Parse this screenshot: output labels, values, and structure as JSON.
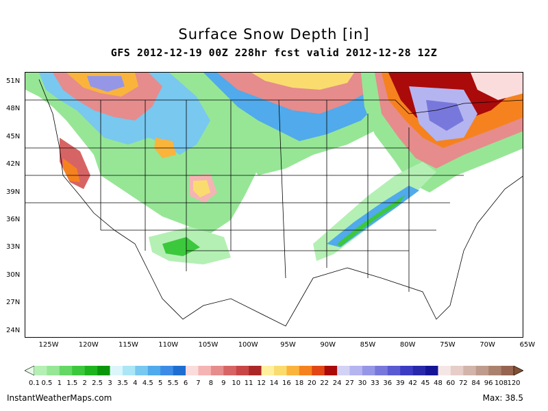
{
  "title": "Surface Snow Depth [in]",
  "subtitle": "GFS 2012-12-19 00Z 228hr fcst valid 2012-12-28 12Z",
  "lat_labels": [
    "51N",
    "48N",
    "45N",
    "42N",
    "39N",
    "36N",
    "33N",
    "30N",
    "27N",
    "24N"
  ],
  "lon_labels": [
    "125W",
    "120W",
    "115W",
    "110W",
    "105W",
    "100W",
    "95W",
    "90W",
    "85W",
    "80W",
    "75W",
    "70W",
    "65W"
  ],
  "legend": {
    "ticks": [
      "0.1",
      "0.5",
      "1",
      "1.5",
      "2",
      "2.5",
      "3",
      "3.5",
      "4",
      "4.5",
      "5",
      "5.5",
      "6",
      "7",
      "8",
      "9",
      "10",
      "11",
      "12",
      "14",
      "16",
      "18",
      "20",
      "22",
      "24",
      "27",
      "30",
      "33",
      "36",
      "39",
      "42",
      "45",
      "48",
      "60",
      "72",
      "84",
      "96",
      "108",
      "120"
    ],
    "colors": [
      "#e6fae6",
      "#b4f0b4",
      "#96e696",
      "#64d764",
      "#3cc83c",
      "#1eb41e",
      "#0a960a",
      "#dcf5fa",
      "#aae6f5",
      "#78c8f0",
      "#50aaeb",
      "#3c8ce6",
      "#1e6ed2",
      "#fadcdc",
      "#f5b4b4",
      "#e68c8c",
      "#d76464",
      "#c84646",
      "#aa2828",
      "#fff0a0",
      "#fadc6e",
      "#fab43c",
      "#f5821e",
      "#e14614",
      "#aa0a0a",
      "#d2d2f5",
      "#b4b4f0",
      "#9696e6",
      "#7878dc",
      "#5a5ad2",
      "#3c3cc3",
      "#2828aa",
      "#141496",
      "#f5e6e6",
      "#e6cdc8",
      "#d2b4aa",
      "#be9b8c",
      "#aa826e",
      "#966450",
      "#825032"
    ]
  },
  "footer_left": "InstantWeatherMaps.com",
  "footer_right": "Max:  38.5"
}
